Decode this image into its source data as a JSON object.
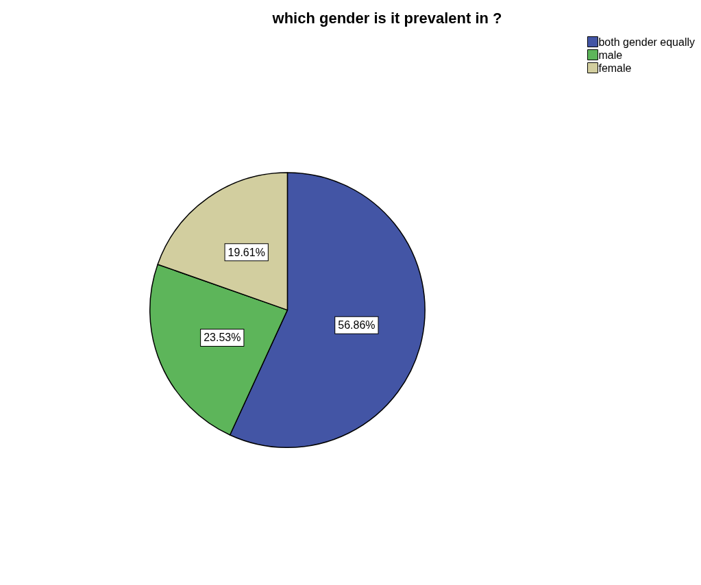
{
  "chart_data": {
    "type": "pie",
    "title": "which gender is it prevalent in ?",
    "categories": [
      "both gender equally",
      "male",
      "female"
    ],
    "values": [
      56.86,
      23.53,
      19.61
    ],
    "colors": [
      "#4355a5",
      "#5db55a",
      "#d2ce9f"
    ],
    "value_labels": [
      "56.86%",
      "23.53%",
      "19.61%"
    ],
    "legend": "top right"
  }
}
